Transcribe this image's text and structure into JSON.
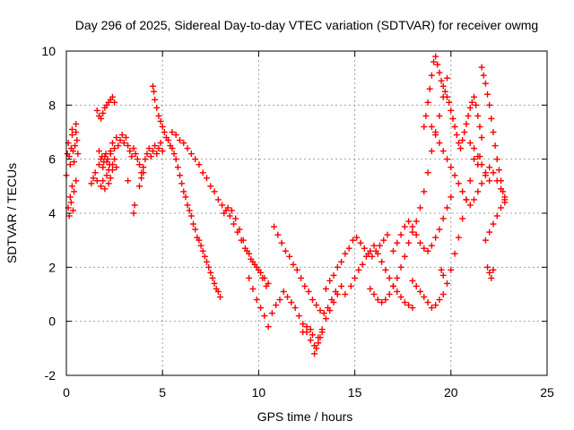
{
  "chart_data": {
    "type": "scatter",
    "title": "Day 296 of 2025, Sidereal Day-to-day VTEC variation (SDTVAR) for receiver owmg",
    "xlabel": "GPS time / hours",
    "ylabel": "SDTVAR / TECUs",
    "xlim": [
      0,
      25
    ],
    "ylim": [
      -2,
      10
    ],
    "x_ticks": [
      0,
      5,
      10,
      15,
      20,
      25
    ],
    "y_ticks": [
      -2,
      0,
      2,
      4,
      6,
      8,
      10
    ],
    "x_tick_labels": [
      "0",
      "5",
      "10",
      "15",
      "20",
      "25"
    ],
    "y_tick_labels": [
      "-2",
      "0",
      "2",
      "4",
      "6",
      "8",
      "10"
    ],
    "grid": true,
    "marker": "+",
    "color": "#ff0000",
    "series": [
      {
        "name": "SDTVAR",
        "x": [
          0.0,
          0.05,
          0.1,
          0.15,
          0.2,
          0.25,
          0.3,
          0.35,
          0.4,
          0.45,
          0.5,
          0.55,
          0.6,
          0.1,
          0.2,
          0.3,
          0.4,
          0.5,
          0.15,
          0.25,
          0.35,
          0.3,
          0.5,
          1.3,
          1.4,
          1.5,
          1.6,
          1.7,
          1.8,
          1.9,
          2.0,
          2.1,
          2.2,
          2.3,
          2.4,
          2.5,
          2.6,
          1.6,
          1.7,
          1.8,
          1.9,
          2.0,
          2.1,
          2.2,
          2.3,
          2.4,
          2.5,
          1.8,
          1.9,
          2.0,
          2.1,
          2.2,
          2.3,
          2.4,
          1.7,
          1.85,
          1.95,
          2.05,
          2.15,
          2.25,
          2.3,
          2.4,
          2.5,
          2.6,
          2.7,
          2.8,
          2.9,
          3.0,
          3.1,
          3.2,
          3.3,
          3.4,
          3.5,
          3.6,
          3.7,
          3.8,
          3.9,
          4.0,
          4.1,
          4.2,
          4.3,
          4.4,
          4.5,
          4.6,
          4.7,
          4.8,
          4.9,
          5.0,
          3.5,
          3.55,
          3.2,
          3.8,
          3.9,
          4.0,
          4.5,
          4.55,
          4.6,
          4.7,
          4.8,
          4.9,
          5.0,
          5.1,
          5.2,
          5.3,
          5.4,
          5.5,
          5.6,
          5.7,
          5.8,
          5.9,
          6.0,
          6.1,
          6.2,
          6.3,
          6.4,
          6.5,
          6.6,
          6.7,
          6.8,
          6.9,
          7.0,
          7.1,
          7.2,
          7.3,
          7.4,
          7.5,
          7.6,
          7.7,
          7.8,
          7.9,
          8.0,
          5.5,
          5.7,
          5.9,
          6.1,
          6.3,
          6.5,
          6.7,
          6.9,
          7.1,
          7.3,
          7.5,
          7.7,
          7.9,
          8.1,
          8.3,
          8.5,
          8.7,
          8.9,
          9.1,
          9.3,
          9.5,
          9.7,
          9.9,
          10.1,
          10.3,
          10.5,
          8.2,
          8.4,
          8.6,
          8.8,
          9.0,
          9.2,
          9.4,
          9.6,
          9.8,
          10.0,
          10.2,
          10.4,
          9.5,
          9.7,
          9.9,
          10.1,
          10.3,
          10.5,
          10.7,
          10.9,
          11.1,
          11.3,
          11.5,
          11.7,
          11.9,
          12.1,
          12.3,
          12.5,
          12.7,
          12.9,
          13.1,
          13.3,
          13.5,
          13.7,
          13.9,
          14.1,
          14.3,
          10.8,
          11.0,
          11.2,
          11.4,
          11.6,
          11.8,
          12.0,
          12.2,
          12.4,
          12.6,
          12.8,
          13.0,
          13.2,
          13.4,
          13.6,
          13.8,
          14.0,
          12.9,
          13.0,
          13.1,
          13.2,
          13.3,
          12.5,
          12.7,
          12.8,
          12.3,
          13.5,
          13.7,
          13.9,
          14.1,
          14.3,
          14.5,
          14.7,
          14.9,
          15.1,
          15.3,
          15.5,
          15.7,
          15.9,
          16.1,
          16.3,
          16.5,
          16.7,
          14.5,
          14.8,
          15.0,
          15.2,
          15.4,
          15.6,
          15.8,
          16.0,
          16.2,
          16.4,
          16.6,
          16.8,
          17.0,
          17.2,
          17.4,
          17.6,
          17.8,
          18.0,
          15.8,
          16.0,
          16.2,
          16.4,
          16.6,
          16.8,
          17.0,
          17.2,
          17.4,
          17.6,
          17.8,
          18.0,
          18.2,
          18.4,
          18.6,
          18.8,
          19.0,
          19.2,
          19.4,
          19.6,
          19.8,
          17.0,
          17.2,
          17.4,
          17.6,
          17.8,
          18.0,
          18.2,
          18.4,
          18.6,
          18.8,
          19.0,
          19.2,
          19.4,
          19.6,
          19.8,
          20.0,
          18.0,
          18.2,
          18.4,
          18.6,
          18.8,
          19.0,
          19.2,
          19.4,
          19.6,
          19.8,
          20.0,
          20.2,
          20.4,
          20.6,
          20.8,
          21.0,
          21.2,
          18.6,
          18.7,
          18.8,
          18.9,
          19.0,
          19.1,
          19.2,
          19.3,
          19.4,
          19.5,
          19.6,
          19.7,
          19.8,
          19.9,
          20.0,
          20.1,
          20.2,
          20.3,
          20.4,
          20.5,
          20.6,
          20.7,
          20.8,
          20.9,
          21.0,
          21.1,
          21.2,
          21.3,
          21.4,
          21.5,
          21.6,
          19.0,
          19.2,
          19.4,
          19.6,
          19.8,
          20.0,
          20.2,
          20.4,
          20.6,
          20.8,
          21.0,
          21.2,
          21.4,
          21.6,
          21.8,
          22.0,
          22.2,
          22.4,
          22.6,
          22.8,
          21.6,
          21.7,
          21.8,
          21.9,
          22.0,
          22.1,
          22.2,
          22.3,
          22.4,
          22.5,
          22.6,
          22.7,
          22.8,
          21.8,
          22.0,
          22.2,
          22.4,
          22.6,
          22.8,
          21.0,
          21.2,
          21.4,
          21.6,
          21.8,
          22.0,
          21.9,
          22.0,
          22.1,
          22.2,
          19.5,
          19.6,
          21.4,
          21.5
        ],
        "y": [
          5.4,
          6.2,
          6.6,
          6.1,
          5.8,
          6.4,
          6.9,
          6.3,
          5.9,
          6.5,
          7.0,
          6.7,
          6.2,
          4.2,
          4.6,
          5.0,
          4.8,
          5.2,
          3.9,
          4.4,
          4.1,
          7.1,
          7.3,
          5.1,
          5.3,
          5.5,
          5.2,
          5.8,
          6.0,
          5.7,
          6.1,
          5.9,
          5.6,
          6.2,
          5.8,
          6.0,
          5.7,
          7.8,
          7.6,
          7.5,
          7.7,
          7.9,
          8.0,
          8.1,
          8.2,
          8.3,
          8.1,
          5.0,
          5.2,
          4.9,
          5.4,
          5.1,
          5.3,
          5.6,
          6.3,
          6.1,
          5.9,
          6.2,
          6.0,
          5.8,
          6.3,
          6.6,
          6.4,
          6.8,
          6.5,
          6.7,
          6.9,
          6.6,
          6.8,
          6.5,
          6.3,
          6.1,
          6.4,
          6.2,
          6.0,
          5.8,
          5.5,
          5.7,
          6.0,
          6.2,
          6.4,
          6.1,
          6.3,
          6.5,
          6.2,
          6.4,
          6.6,
          6.3,
          4.0,
          4.3,
          5.2,
          5.0,
          5.3,
          5.5,
          8.7,
          8.5,
          8.2,
          7.9,
          7.6,
          7.4,
          7.2,
          7.0,
          6.8,
          6.7,
          6.5,
          6.4,
          6.2,
          6.0,
          5.7,
          5.4,
          5.1,
          4.8,
          4.6,
          4.3,
          4.1,
          3.9,
          3.6,
          3.4,
          3.1,
          3.0,
          2.8,
          2.6,
          2.4,
          2.2,
          2.0,
          1.8,
          1.6,
          1.4,
          1.2,
          1.1,
          0.9,
          7.0,
          6.9,
          6.7,
          6.6,
          6.4,
          6.2,
          6.0,
          5.8,
          5.5,
          5.3,
          5.0,
          4.8,
          4.5,
          4.3,
          4.1,
          3.9,
          3.6,
          3.3,
          3.0,
          2.7,
          2.5,
          2.2,
          2.0,
          1.8,
          1.6,
          1.4,
          4.0,
          4.2,
          4.1,
          3.8,
          3.4,
          3.0,
          2.6,
          2.3,
          2.1,
          1.9,
          1.6,
          1.3,
          1.6,
          1.2,
          0.8,
          0.5,
          0.2,
          -0.2,
          0.3,
          0.6,
          0.8,
          1.1,
          0.9,
          0.7,
          0.5,
          0.2,
          -0.1,
          -0.4,
          -0.7,
          -0.9,
          -0.6,
          -0.3,
          0.1,
          0.4,
          0.7,
          1.0,
          1.3,
          3.5,
          3.2,
          2.9,
          2.6,
          2.4,
          2.1,
          1.9,
          1.6,
          1.3,
          1.1,
          0.8,
          0.6,
          0.4,
          0.3,
          0.5,
          0.8,
          1.1,
          -1.2,
          -1.0,
          -0.8,
          -0.6,
          -0.4,
          -0.2,
          -0.3,
          -0.5,
          -0.4,
          1.2,
          1.5,
          1.7,
          2.0,
          2.2,
          2.5,
          2.7,
          3.0,
          3.1,
          2.9,
          2.7,
          2.5,
          2.4,
          2.6,
          2.8,
          3.0,
          3.2,
          1.0,
          1.3,
          1.6,
          1.9,
          2.1,
          2.4,
          2.6,
          2.8,
          2.5,
          2.2,
          1.9,
          1.6,
          1.3,
          1.1,
          0.9,
          0.7,
          0.6,
          0.5,
          1.2,
          1.0,
          0.8,
          0.7,
          0.8,
          1.0,
          1.3,
          1.6,
          2.0,
          2.4,
          2.9,
          3.3,
          3.7,
          4.2,
          4.8,
          5.5,
          6.3,
          7.0,
          7.6,
          8.3,
          9.0,
          2.6,
          2.9,
          3.2,
          3.5,
          3.7,
          3.5,
          3.2,
          2.9,
          2.7,
          2.6,
          2.8,
          3.1,
          3.4,
          3.8,
          4.2,
          4.6,
          1.5,
          1.3,
          1.1,
          0.9,
          0.7,
          0.5,
          0.6,
          0.8,
          1.0,
          1.4,
          1.9,
          2.5,
          3.1,
          3.8,
          4.5,
          5.2,
          6.0,
          7.2,
          7.6,
          8.1,
          8.6,
          9.1,
          9.6,
          9.8,
          9.5,
          9.2,
          8.9,
          8.7,
          8.5,
          8.3,
          8.1,
          7.8,
          7.5,
          7.2,
          6.9,
          6.6,
          6.4,
          6.7,
          7.0,
          7.3,
          7.6,
          7.9,
          8.1,
          8.3,
          8.0,
          7.6,
          7.2,
          6.8,
          7.2,
          6.9,
          6.6,
          6.3,
          6.0,
          5.7,
          5.4,
          5.1,
          4.8,
          4.5,
          4.3,
          4.5,
          4.8,
          5.1,
          5.4,
          5.7,
          5.5,
          5.2,
          4.9,
          4.6,
          9.4,
          9.1,
          8.8,
          8.4,
          8.0,
          7.5,
          7.0,
          6.5,
          6.0,
          5.6,
          5.2,
          4.8,
          4.5,
          3.0,
          3.3,
          3.6,
          3.9,
          4.2,
          4.4,
          6.6,
          6.4,
          6.1,
          5.8,
          5.5,
          5.2,
          2.0,
          1.8,
          1.6,
          1.9,
          1.9,
          1.7,
          5.8,
          6.1
        ]
      }
    ]
  }
}
